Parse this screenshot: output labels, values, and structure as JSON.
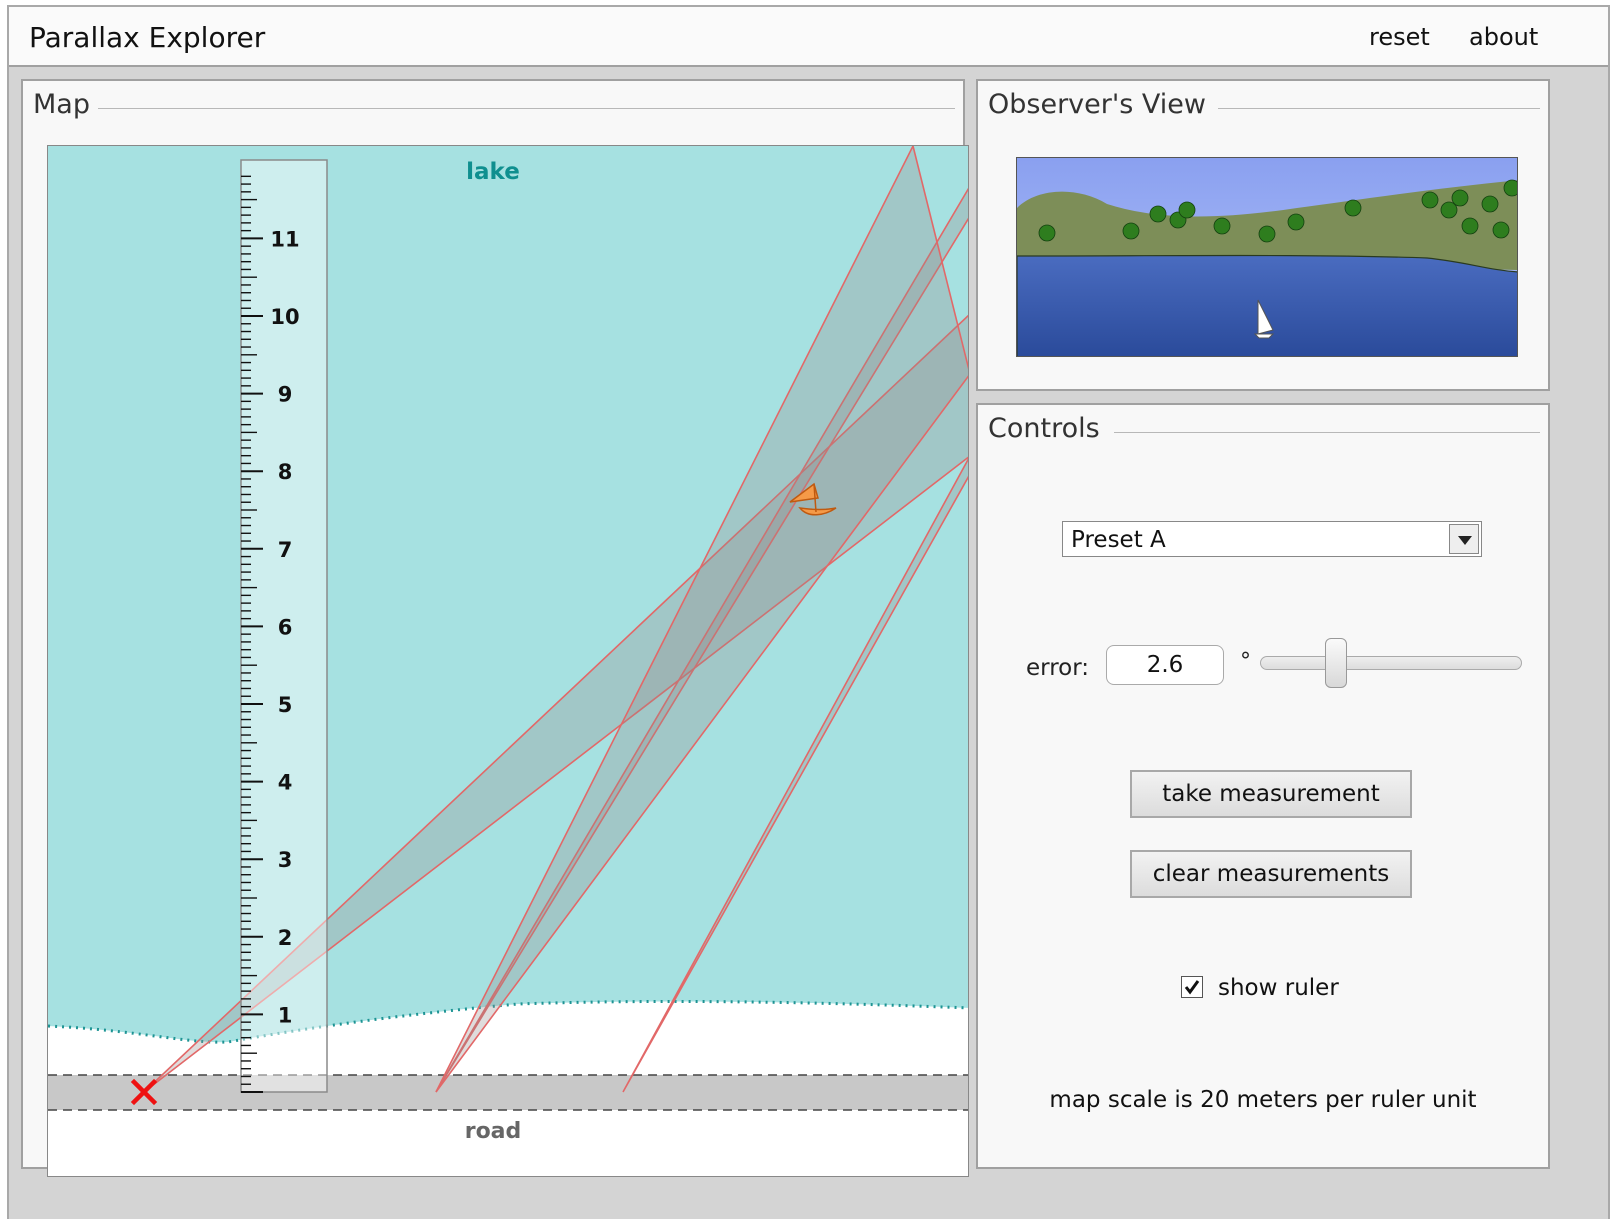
{
  "app": {
    "title": "Parallax Explorer",
    "reset_label": "reset",
    "about_label": "about"
  },
  "map": {
    "title": "Map",
    "lake_label": "lake",
    "road_label": "road",
    "ruler_ticks": [
      "1",
      "2",
      "3",
      "4",
      "5",
      "6",
      "7",
      "8",
      "9",
      "10",
      "11"
    ]
  },
  "observer_view": {
    "title": "Observer's View"
  },
  "controls": {
    "title": "Controls",
    "preset_value": "Preset A",
    "error_label": "error:",
    "error_value": "2.6",
    "degree_symbol": "°",
    "error_slider_fraction": 0.3,
    "take_measurement_label": "take measurement",
    "clear_measurements_label": "clear measurements",
    "show_ruler_label": "show ruler",
    "show_ruler_checked": true,
    "scale_text": "map scale is 20 meters per ruler unit"
  },
  "colors": {
    "lake": "#a6e1e1",
    "shore_dots": "#1e9494",
    "road": "#c8c8c8",
    "sight_lines": "#e26868",
    "marker": "#ee1111",
    "boat": "#f59a48"
  }
}
